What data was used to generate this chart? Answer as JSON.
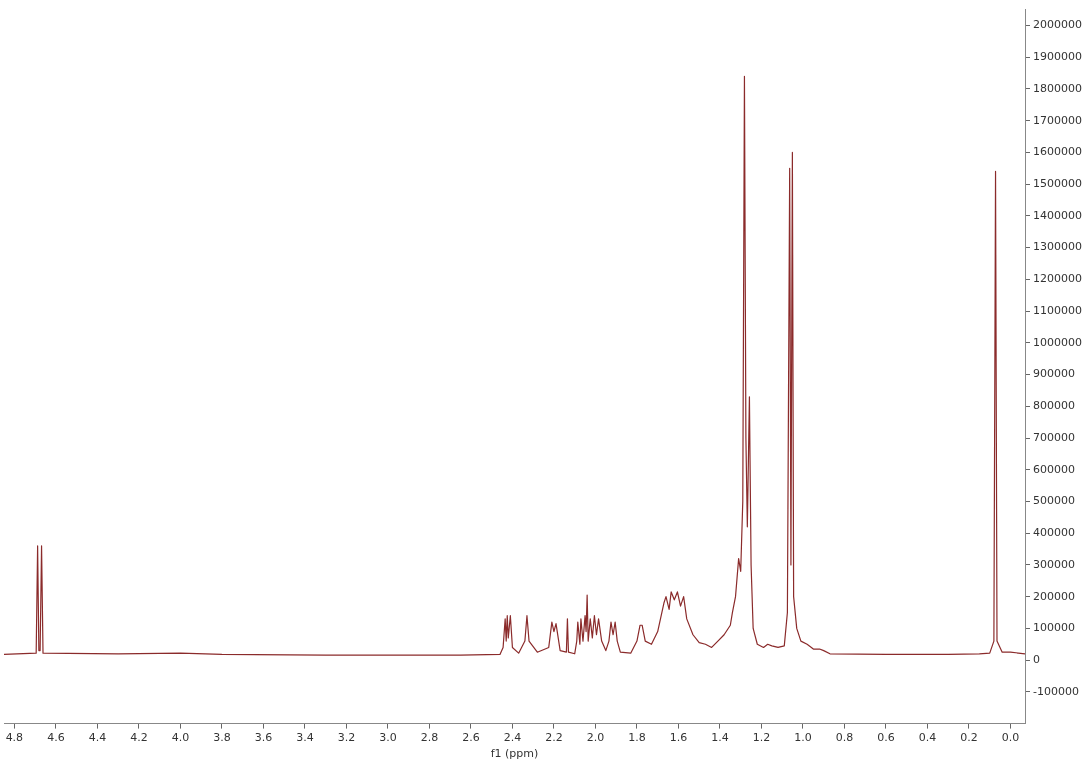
{
  "chart_data": {
    "type": "line",
    "xlabel": "f1 (ppm)",
    "x": [
      4.85,
      4.695,
      4.688,
      4.682,
      4.676,
      4.669,
      4.662,
      4.3,
      4.0,
      3.8,
      3.3,
      2.65,
      2.46,
      2.445,
      2.435,
      2.43,
      2.425,
      2.42,
      2.41,
      2.4,
      2.37,
      2.34,
      2.33,
      2.32,
      2.28,
      2.225,
      2.21,
      2.2,
      2.19,
      2.17,
      2.14,
      2.135,
      2.13,
      2.1,
      2.09,
      2.085,
      2.075,
      2.07,
      2.06,
      2.05,
      2.045,
      2.04,
      2.035,
      2.025,
      2.015,
      2.005,
      1.995,
      1.985,
      1.97,
      1.95,
      1.935,
      1.925,
      1.915,
      1.905,
      1.895,
      1.88,
      1.83,
      1.8,
      1.785,
      1.775,
      1.76,
      1.73,
      1.7,
      1.67,
      1.66,
      1.645,
      1.635,
      1.62,
      1.605,
      1.59,
      1.575,
      1.56,
      1.53,
      1.5,
      1.47,
      1.44,
      1.41,
      1.38,
      1.35,
      1.34,
      1.325,
      1.31,
      1.3,
      1.29,
      1.282,
      1.275,
      1.268,
      1.258,
      1.25,
      1.24,
      1.22,
      1.19,
      1.17,
      1.15,
      1.12,
      1.09,
      1.075,
      1.064,
      1.058,
      1.051,
      1.045,
      1.03,
      1.01,
      0.98,
      0.95,
      0.92,
      0.9,
      0.87,
      0.6,
      0.3,
      0.15,
      0.1,
      0.08,
      0.072,
      0.065,
      0.04,
      0.0,
      -0.07
    ],
    "series": [
      {
        "color": "#8b2b2b",
        "values": [
          18000,
          22000,
          360000,
          30000,
          30000,
          360000,
          22000,
          20000,
          22000,
          18000,
          16000,
          16000,
          18000,
          40000,
          130000,
          60000,
          140000,
          70000,
          140000,
          40000,
          22000,
          60000,
          140000,
          60000,
          25000,
          40000,
          120000,
          90000,
          115000,
          30000,
          25000,
          130000,
          25000,
          20000,
          60000,
          120000,
          50000,
          130000,
          60000,
          140000,
          90000,
          205000,
          60000,
          130000,
          70000,
          140000,
          80000,
          130000,
          60000,
          30000,
          60000,
          120000,
          80000,
          120000,
          60000,
          25000,
          22000,
          60000,
          110000,
          110000,
          60000,
          50000,
          90000,
          180000,
          200000,
          160000,
          215000,
          190000,
          215000,
          170000,
          200000,
          130000,
          80000,
          55000,
          50000,
          40000,
          60000,
          80000,
          110000,
          150000,
          200000,
          320000,
          280000,
          500000,
          1840000,
          700000,
          420000,
          830000,
          300000,
          100000,
          50000,
          40000,
          50000,
          45000,
          40000,
          45000,
          150000,
          1550000,
          300000,
          1600000,
          200000,
          100000,
          60000,
          50000,
          35000,
          35000,
          30000,
          20000,
          18000,
          18000,
          20000,
          22000,
          60000,
          1540000,
          60000,
          25000,
          25000,
          20000
        ]
      }
    ],
    "xlim": [
      4.85,
      -0.07
    ],
    "xticks": [
      4.8,
      4.6,
      4.4,
      4.2,
      {
        "value": 4,
        "label": "4.0"
      },
      3.8,
      3.6,
      3.4,
      3.2,
      {
        "value": 3,
        "label": "3.0"
      },
      2.8,
      2.6,
      2.4,
      2.2,
      {
        "value": 2,
        "label": "2.0"
      },
      1.8,
      1.6,
      1.4,
      1.2,
      {
        "value": 1,
        "label": "1.0"
      },
      0.8,
      0.6,
      0.4,
      0.2,
      {
        "value": 0,
        "label": "0.0"
      }
    ],
    "ylim": [
      -200000,
      2050000
    ],
    "yticks": [
      -100000,
      0,
      100000,
      200000,
      300000,
      400000,
      500000,
      600000,
      700000,
      800000,
      900000,
      1000000,
      1100000,
      1200000,
      1300000,
      1400000,
      1500000,
      1600000,
      1700000,
      1800000,
      1900000,
      2000000
    ],
    "grid": false,
    "legend": false,
    "marker": "none",
    "line_style": "solid"
  }
}
